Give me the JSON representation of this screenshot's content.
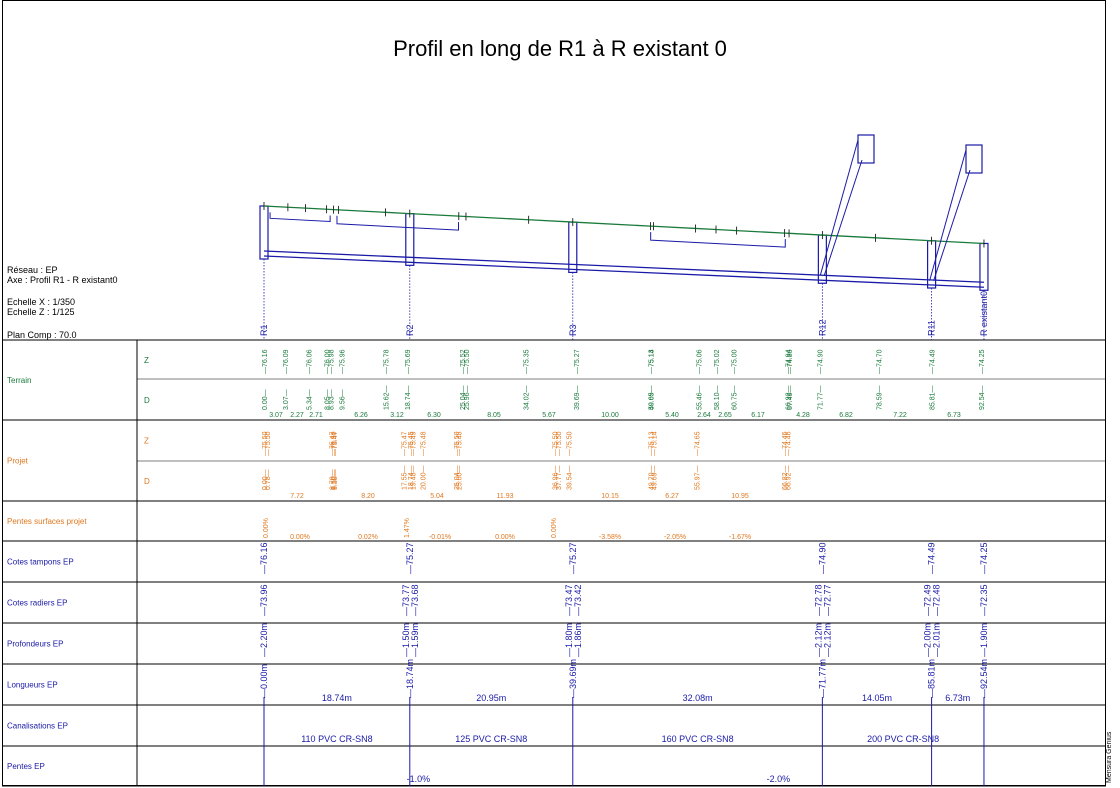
{
  "title": "Profil en long de R1 à R existant 0",
  "info": {
    "reseau": "Réseau : EP",
    "axe": "Axe : Profil R1 - R existant0",
    "echelle_x": "Echelle X : 1/350",
    "echelle_z": "Echelle Z : 1/125",
    "plan_comp": "Plan Comp : 70.0"
  },
  "signature": "Mensura Genius",
  "colors": {
    "terrain": "#1a7a3c",
    "projet": "#e07820",
    "network": "#1a1aa8",
    "line": "#000000"
  },
  "profile": {
    "nodes": [
      {
        "name": "R1",
        "d": 0.0
      },
      {
        "name": "R2",
        "d": 18.74
      },
      {
        "name": "R3",
        "d": 39.69
      },
      {
        "name": "R12",
        "d": 71.77
      },
      {
        "name": "R11",
        "d": 85.81
      },
      {
        "name": "R existant0",
        "d": 92.54
      }
    ]
  },
  "rows": [
    {
      "id": "terrain",
      "label": "Terrain",
      "sub": [
        "Z",
        "D"
      ]
    },
    {
      "id": "projet",
      "label": "Projet",
      "sub": [
        "Z",
        "D"
      ]
    },
    {
      "id": "pentes-surfaces",
      "label": "Pentes surfaces projet",
      "sub": []
    },
    {
      "id": "cotes-tampons",
      "label": "Cotes tampons  EP",
      "sub": []
    },
    {
      "id": "cotes-radiers",
      "label": "Cotes radiers  EP",
      "sub": []
    },
    {
      "id": "profondeurs",
      "label": "Profondeurs  EP",
      "sub": []
    },
    {
      "id": "longueurs",
      "label": "Longueurs EP",
      "sub": []
    },
    {
      "id": "canalisations",
      "label": "Canalisations  EP",
      "sub": []
    },
    {
      "id": "pentes",
      "label": "Pentes  EP",
      "sub": []
    }
  ],
  "terrain": {
    "points": [
      {
        "d": "0.00",
        "z": "76.16"
      },
      {
        "d": "3.07",
        "z": "76.09"
      },
      {
        "d": "5.34",
        "z": "76.06"
      },
      {
        "d": "8.05",
        "z": "76.00"
      },
      {
        "d": "8.93",
        "z": "75.98"
      },
      {
        "d": "9.56",
        "z": "75.96"
      },
      {
        "d": "15.62",
        "z": "75.78"
      },
      {
        "d": "18.74",
        "z": "75.69"
      },
      {
        "d": "25.04",
        "z": "75.52"
      },
      {
        "d": "25.96",
        "z": "75.50"
      },
      {
        "d": "34.02",
        "z": "75.35"
      },
      {
        "d": "39.69",
        "z": "75.27"
      },
      {
        "d": "49.69",
        "z": "75.14"
      },
      {
        "d": "50.05",
        "z": "75.13"
      },
      {
        "d": "55.46",
        "z": "75.06"
      },
      {
        "d": "58.10",
        "z": "75.02"
      },
      {
        "d": "60.75",
        "z": "75.00"
      },
      {
        "d": "66.92",
        "z": "74.94"
      },
      {
        "d": "67.49",
        "z": "74.86"
      },
      {
        "d": "71.77",
        "z": "74.90"
      },
      {
        "d": "78.59",
        "z": "74.70"
      },
      {
        "d": "85.81",
        "z": "74.49"
      },
      {
        "d": "92.54",
        "z": "74.25"
      }
    ],
    "distances": [
      "3.07",
      "2.27",
      "2.71",
      "6.26",
      "3.12",
      "6.30",
      "8.05",
      "5.67",
      "10.00",
      "5.40",
      "2.64",
      "2.65",
      "6.17",
      "4.28",
      "6.82",
      "7.22",
      "6.73"
    ]
  },
  "projet": {
    "points": [
      {
        "d": "0.00",
        "z": "75.50"
      },
      {
        "d": "0.78",
        "z": "75.50"
      },
      {
        "d": "8.50",
        "z": "75.50"
      },
      {
        "d": "8.70",
        "z": "75.47"
      },
      {
        "d": "9.38",
        "z": "75.47"
      },
      {
        "d": "17.55",
        "z": "75.47"
      },
      {
        "d": "18.74",
        "z": "75.45"
      },
      {
        "d": "19.48",
        "z": "75.49"
      },
      {
        "d": "20.00",
        "z": "75.48"
      },
      {
        "d": "25.00",
        "z": "75.48"
      },
      {
        "d": "25.04",
        "z": "75.50"
      },
      {
        "d": "36.96",
        "z": "75.50"
      },
      {
        "d": "37.77",
        "z": "75.50"
      },
      {
        "d": "39.54",
        "z": "75.50"
      },
      {
        "d": "49.69",
        "z": "75.14"
      },
      {
        "d": "49.70",
        "z": "75.13"
      },
      {
        "d": "55.97",
        "z": "74.65"
      },
      {
        "d": "66.92",
        "z": "74.46"
      },
      {
        "d": "66.82",
        "z": "74.46"
      }
    ],
    "distances": [
      "7.72",
      "8.20",
      "5.04",
      "11.93",
      "10.15",
      "6.27",
      "10.95"
    ]
  },
  "pentes_surfaces": {
    "vertical": [
      "0.00%",
      "1.47%",
      "0.00%"
    ],
    "horizontal": [
      "0.00%",
      "0.02%",
      "-0.01%",
      "0.00%",
      "-3.58%",
      "-2.05%",
      "-1.67%"
    ]
  },
  "cotes_tampons": [
    "76.16",
    "75.27",
    "75.27",
    "74.90",
    "74.49",
    "74.25"
  ],
  "cotes_radiers": [
    [
      "73.96"
    ],
    [
      "73.77",
      "73.68"
    ],
    [
      "73.47",
      "73.42"
    ],
    [
      "72.78",
      "72.77"
    ],
    [
      "72.49",
      "72.48"
    ],
    [
      "72.35"
    ]
  ],
  "profondeurs": [
    [
      "2.20m"
    ],
    [
      "1.50m",
      "1.59m"
    ],
    [
      "1.80m",
      "1.86m"
    ],
    [
      "2.12m",
      "2.12m"
    ],
    [
      "2.00m",
      "2.01m"
    ],
    [
      "1.90m"
    ]
  ],
  "longueurs": {
    "cumul": [
      "0.00m",
      "18.74m",
      "39.69m",
      "71.77m",
      "85.81m",
      "92.54m"
    ],
    "segments": [
      "18.74m",
      "20.95m",
      "32.08m",
      "14.05m",
      "6.73m"
    ]
  },
  "canalisations": [
    "110 PVC CR-SN8",
    "125 PVC CR-SN8",
    "160 PVC CR-SN8",
    "200 PVC CR-SN8"
  ],
  "pentes": [
    "-1.0%",
    "-2.0%"
  ]
}
